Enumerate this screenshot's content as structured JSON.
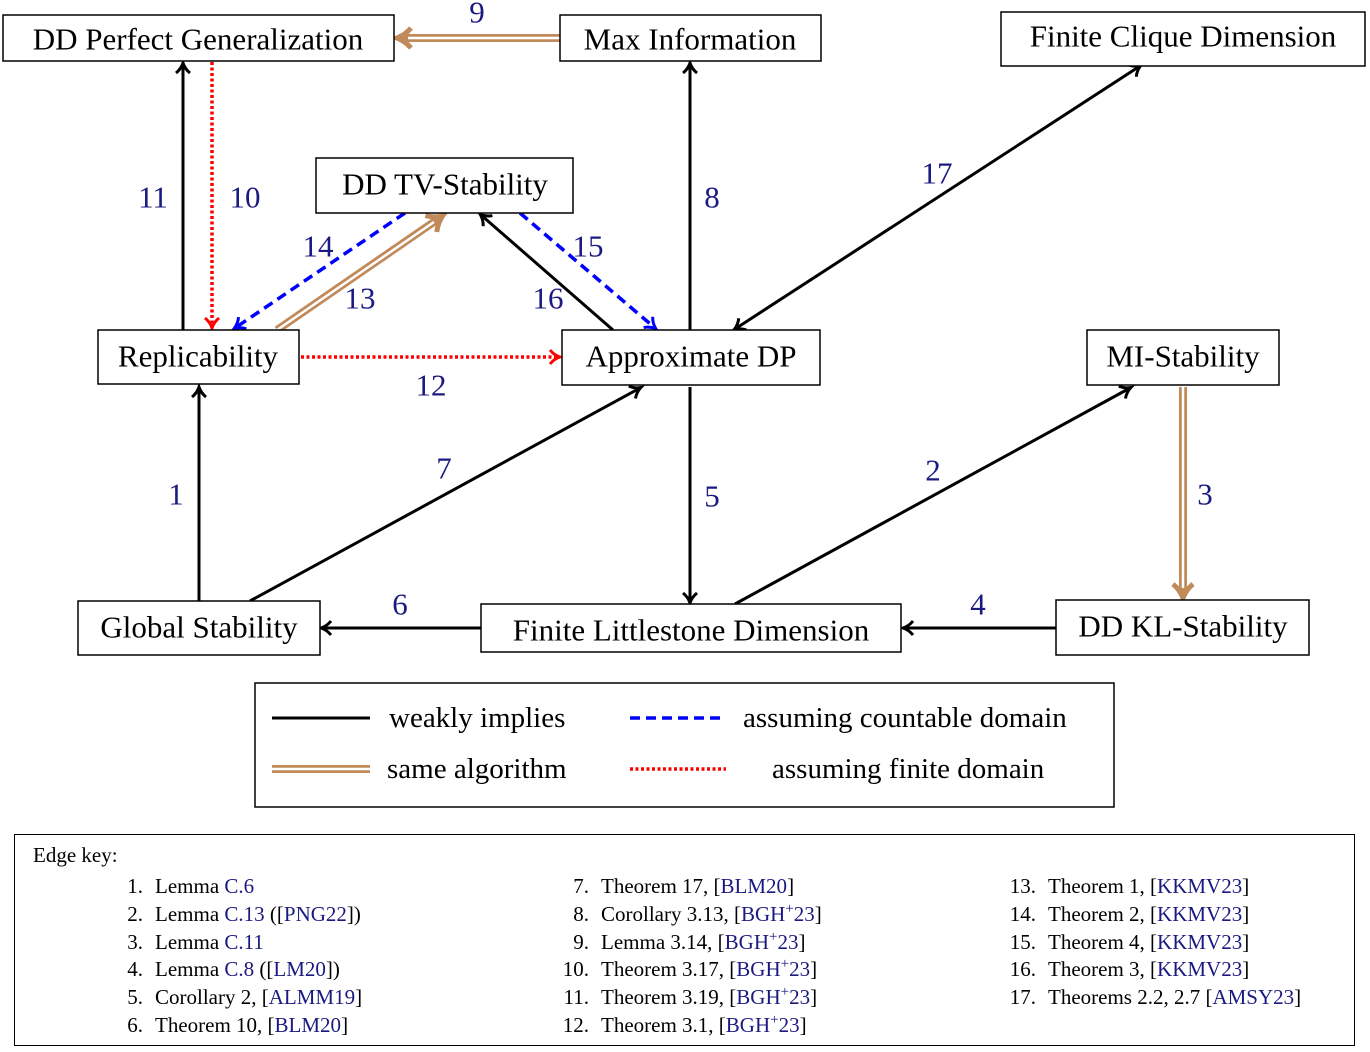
{
  "nodes": {
    "dd_perfect_generalization": "DD Perfect Generalization",
    "max_information": "Max Information",
    "finite_clique_dimension": "Finite Clique Dimension",
    "dd_tv_stability": "DD TV-Stability",
    "replicability": "Replicability",
    "approximate_dp": "Approximate DP",
    "mi_stability": "MI-Stability",
    "global_stability": "Global Stability",
    "finite_littlestone_dimension": "Finite Littlestone Dimension",
    "dd_kl_stability": "DD KL-Stability"
  },
  "edges": {
    "e1": "1",
    "e2": "2",
    "e3": "3",
    "e4": "4",
    "e5": "5",
    "e6": "6",
    "e7": "7",
    "e8": "8",
    "e9": "9",
    "e10": "10",
    "e11": "11",
    "e12": "12",
    "e13": "13",
    "e14": "14",
    "e15": "15",
    "e16": "16",
    "e17": "17"
  },
  "legend": {
    "weakly_implies": "weakly implies",
    "same_algorithm": "same algorithm",
    "countable_domain": "assuming countable domain",
    "finite_domain": "assuming finite domain"
  },
  "colors": {
    "weakly_implies": "#000000",
    "same_algorithm": "#c08a5a",
    "countable_domain": "#0000ff",
    "finite_domain": "#ff0000",
    "edge_label": "#1a1a80"
  },
  "edge_key": {
    "title": "Edge key:",
    "columns": [
      [
        {
          "n": "1.",
          "seg": [
            {
              "t": "Lemma "
            },
            {
              "t": "C.6",
              "l": true
            }
          ]
        },
        {
          "n": "2.",
          "seg": [
            {
              "t": "Lemma "
            },
            {
              "t": "C.13",
              "l": true
            },
            {
              "t": " (["
            },
            {
              "t": "PNG22",
              "l": true
            },
            {
              "t": "])"
            }
          ]
        },
        {
          "n": "3.",
          "seg": [
            {
              "t": "Lemma "
            },
            {
              "t": "C.11",
              "l": true
            }
          ]
        },
        {
          "n": "4.",
          "seg": [
            {
              "t": "Lemma "
            },
            {
              "t": "C.8",
              "l": true
            },
            {
              "t": " (["
            },
            {
              "t": "LM20",
              "l": true
            },
            {
              "t": "])"
            }
          ]
        },
        {
          "n": "5.",
          "seg": [
            {
              "t": "Corollary 2, ["
            },
            {
              "t": "ALMM19",
              "l": true
            },
            {
              "t": "]"
            }
          ]
        },
        {
          "n": "6.",
          "seg": [
            {
              "t": "Theorem 10, ["
            },
            {
              "t": "BLM20",
              "l": true
            },
            {
              "t": "]"
            }
          ]
        }
      ],
      [
        {
          "n": "7.",
          "seg": [
            {
              "t": "Theorem 17, ["
            },
            {
              "t": "BLM20",
              "l": true
            },
            {
              "t": "]"
            }
          ]
        },
        {
          "n": "8.",
          "seg": [
            {
              "t": "Corollary 3.13, ["
            },
            {
              "t": "BGH",
              "l": true
            },
            {
              "t": "+",
              "l": true,
              "sup": true
            },
            {
              "t": "23",
              "l": true
            },
            {
              "t": "]"
            }
          ]
        },
        {
          "n": "9.",
          "seg": [
            {
              "t": "Lemma 3.14, ["
            },
            {
              "t": "BGH",
              "l": true
            },
            {
              "t": "+",
              "l": true,
              "sup": true
            },
            {
              "t": "23",
              "l": true
            },
            {
              "t": "]"
            }
          ]
        },
        {
          "n": "10.",
          "seg": [
            {
              "t": "Theorem 3.17, ["
            },
            {
              "t": "BGH",
              "l": true
            },
            {
              "t": "+",
              "l": true,
              "sup": true
            },
            {
              "t": "23",
              "l": true
            },
            {
              "t": "]"
            }
          ]
        },
        {
          "n": "11.",
          "seg": [
            {
              "t": "Theorem 3.19, ["
            },
            {
              "t": "BGH",
              "l": true
            },
            {
              "t": "+",
              "l": true,
              "sup": true
            },
            {
              "t": "23",
              "l": true
            },
            {
              "t": "]"
            }
          ]
        },
        {
          "n": "12.",
          "seg": [
            {
              "t": "Theorem 3.1, ["
            },
            {
              "t": "BGH",
              "l": true
            },
            {
              "t": "+",
              "l": true,
              "sup": true
            },
            {
              "t": "23",
              "l": true
            },
            {
              "t": "]"
            }
          ]
        }
      ],
      [
        {
          "n": "13.",
          "seg": [
            {
              "t": "Theorem 1, ["
            },
            {
              "t": "KKMV23",
              "l": true
            },
            {
              "t": "]"
            }
          ]
        },
        {
          "n": "14.",
          "seg": [
            {
              "t": "Theorem 2, ["
            },
            {
              "t": "KKMV23",
              "l": true
            },
            {
              "t": "]"
            }
          ]
        },
        {
          "n": "15.",
          "seg": [
            {
              "t": "Theorem 4, ["
            },
            {
              "t": "KKMV23",
              "l": true
            },
            {
              "t": "]"
            }
          ]
        },
        {
          "n": "16.",
          "seg": [
            {
              "t": "Theorem 3, ["
            },
            {
              "t": "KKMV23",
              "l": true
            },
            {
              "t": "]"
            }
          ]
        },
        {
          "n": "17.",
          "seg": [
            {
              "t": "Theorems 2.2, 2.7 ["
            },
            {
              "t": "AMSY23",
              "l": true
            },
            {
              "t": "]"
            }
          ]
        }
      ]
    ]
  }
}
